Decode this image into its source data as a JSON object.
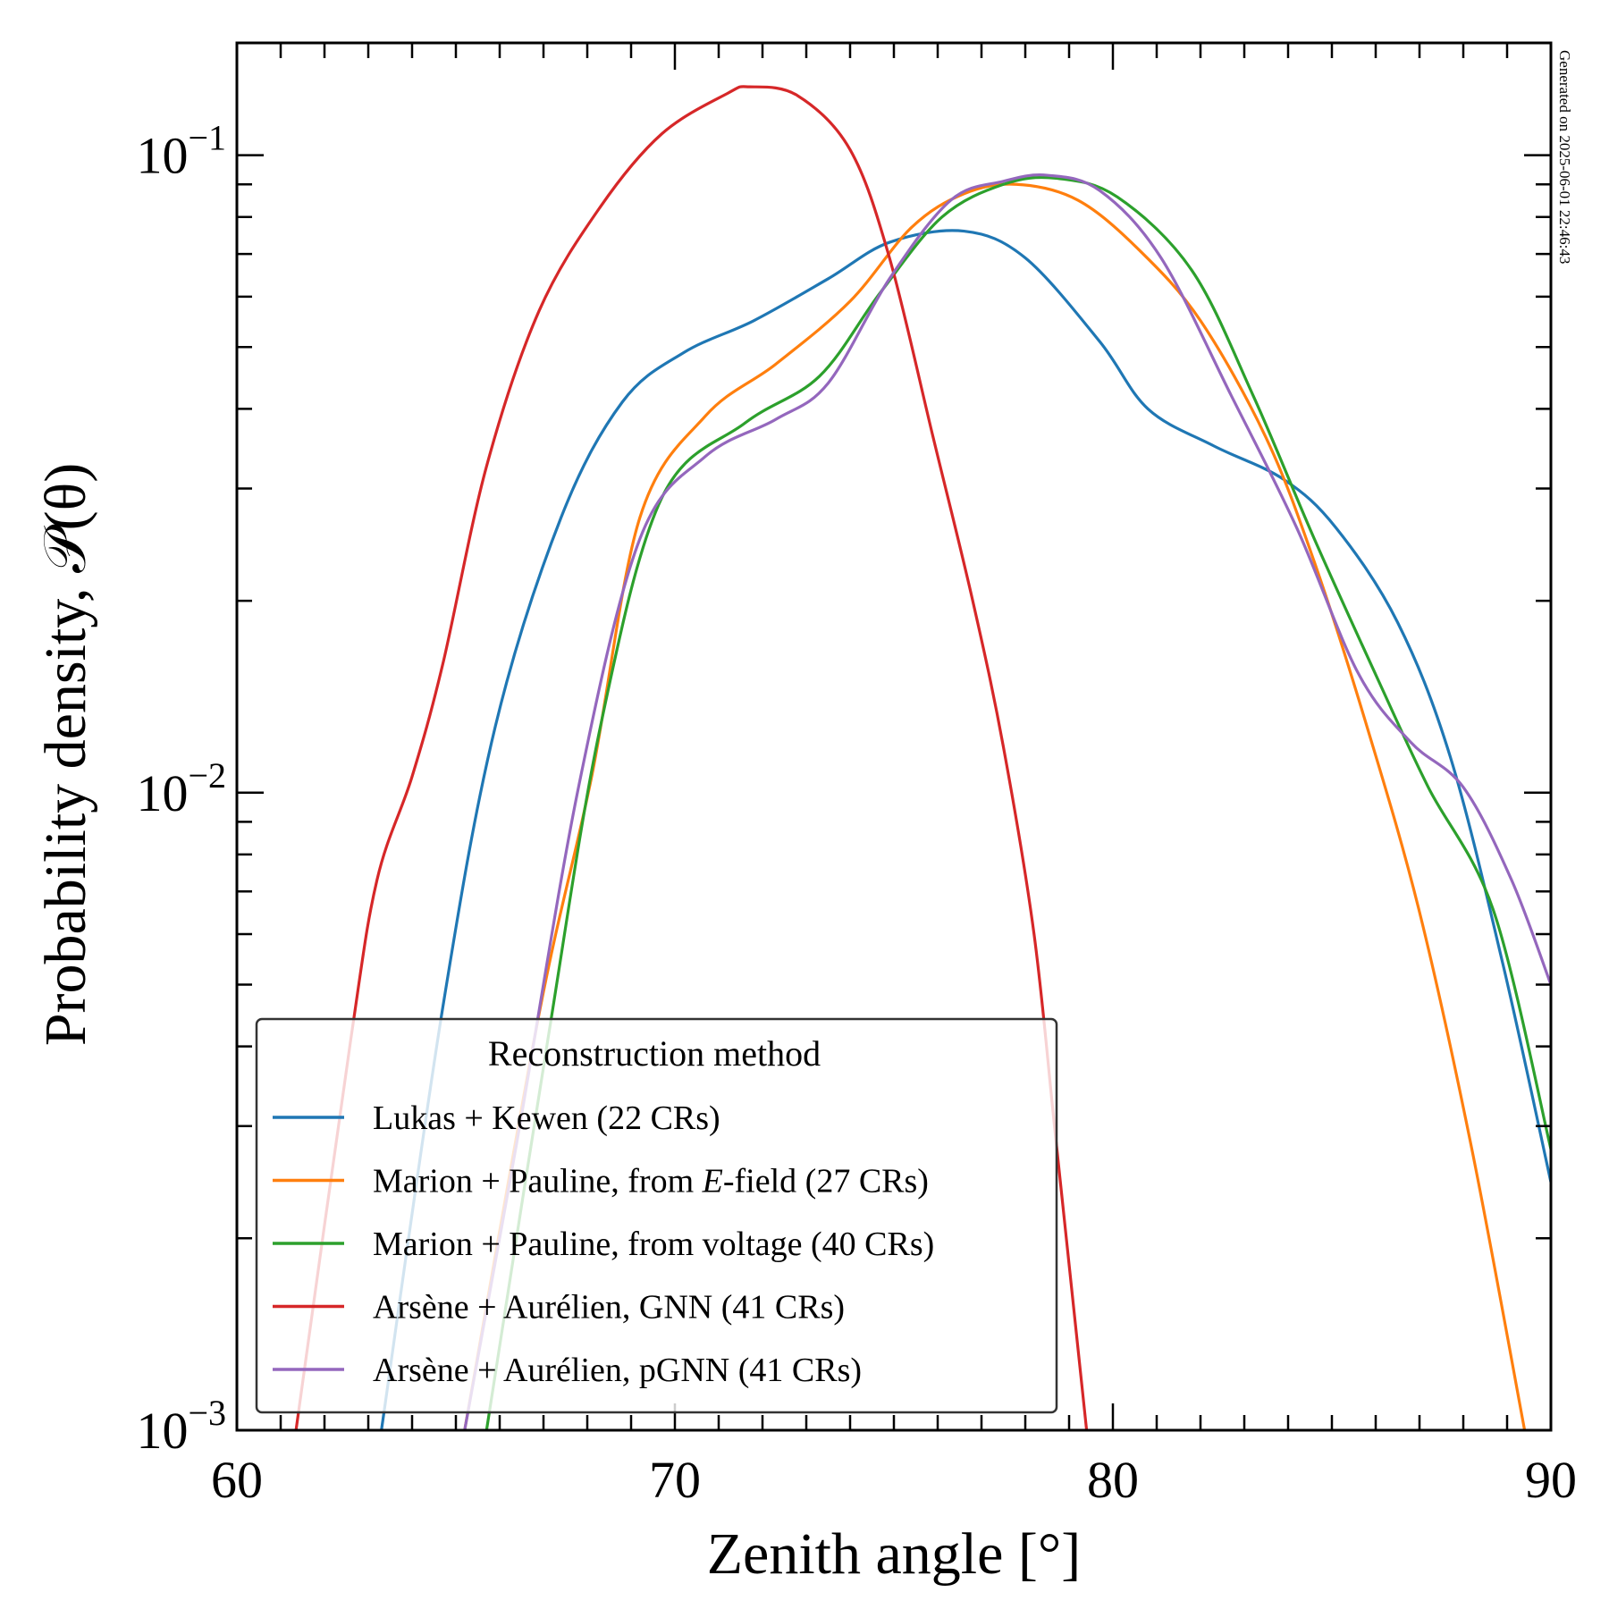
{
  "chart_data": {
    "type": "line",
    "title": "",
    "xlabel": "Zenith angle [°]",
    "ylabel": "Probability density, 𝒫(θ)",
    "xscale": "linear",
    "yscale": "log",
    "xlim": [
      60,
      90
    ],
    "ylim": [
      0.001,
      0.15
    ],
    "x_ticks": [
      60,
      70,
      80,
      90
    ],
    "x_tick_labels": [
      "60",
      "70",
      "80",
      "90"
    ],
    "y_ticks": [
      0.001,
      0.01,
      0.1
    ],
    "y_tick_labels": [
      {
        "base": "10",
        "exp": "−3"
      },
      {
        "base": "10",
        "exp": "−2"
      },
      {
        "base": "10",
        "exp": "−1"
      }
    ],
    "grid": false,
    "legend": {
      "title": "Reconstruction method",
      "placement": "lower-left"
    },
    "annotation": "Generated on 2025-06-01  22:46:43",
    "series": [
      {
        "name": "Lukas + Kewen (22 CRs)",
        "color": "#1f77b4",
        "x": [
          63.3,
          64.7,
          65.9,
          67.4,
          68.8,
          70.2,
          71.8,
          73.5,
          74.9,
          76.6,
          78.0,
          79.7,
          80.8,
          82.3,
          83.9,
          85.1,
          86.5,
          87.7,
          88.9,
          90.0
        ],
        "y": [
          0.001,
          0.0046,
          0.0127,
          0.027,
          0.041,
          0.049,
          0.055,
          0.064,
          0.073,
          0.076,
          0.069,
          0.051,
          0.04,
          0.035,
          0.031,
          0.026,
          0.0185,
          0.0114,
          0.0054,
          0.00245
        ]
      },
      {
        "name": "Marion + Pauline, from E-field (27 CRs)",
        "label_parts": [
          "Marion + Pauline, from ",
          "E",
          "-field (27 CRs)"
        ],
        "color": "#ff7f0e",
        "x": [
          65.2,
          66.9,
          68.1,
          69.2,
          70.7,
          72.3,
          74.0,
          75.4,
          76.6,
          77.8,
          79.2,
          80.6,
          82.0,
          83.5,
          84.6,
          85.8,
          87.0,
          88.2,
          89.4
        ],
        "y": [
          0.001,
          0.0045,
          0.0106,
          0.027,
          0.039,
          0.047,
          0.059,
          0.077,
          0.087,
          0.09,
          0.085,
          0.071,
          0.055,
          0.036,
          0.023,
          0.0127,
          0.0065,
          0.00275,
          0.001
        ]
      },
      {
        "name": "Marion + Pauline, from voltage (40 CRs)",
        "color": "#2ca02c",
        "x": [
          65.7,
          67.1,
          68.3,
          69.7,
          71.6,
          73.3,
          74.7,
          76.1,
          77.5,
          78.7,
          80.1,
          81.8,
          83.2,
          84.6,
          86.1,
          87.2,
          88.7,
          90.0
        ],
        "y": [
          0.001,
          0.0041,
          0.0127,
          0.029,
          0.038,
          0.045,
          0.061,
          0.08,
          0.09,
          0.092,
          0.086,
          0.066,
          0.042,
          0.025,
          0.0148,
          0.0102,
          0.0065,
          0.00276
        ]
      },
      {
        "name": "Arsène + Aurélien, GNN (41 CRs)",
        "color": "#d62728",
        "x": [
          61.35,
          62.6,
          63.2,
          64.0,
          64.7,
          65.7,
          66.9,
          68.3,
          69.7,
          71.2,
          71.7,
          72.8,
          74.0,
          74.9,
          75.9,
          76.8,
          77.5,
          78.2,
          78.7,
          79.4
        ],
        "y": [
          0.001,
          0.0041,
          0.0073,
          0.0106,
          0.0159,
          0.0325,
          0.057,
          0.083,
          0.108,
          0.125,
          0.128,
          0.124,
          0.102,
          0.069,
          0.036,
          0.02,
          0.0118,
          0.006,
          0.00285,
          0.001
        ]
      },
      {
        "name": "Arsène + Aurélien, pGNN (41 CRs)",
        "color": "#9467bd",
        "x": [
          65.2,
          66.4,
          67.8,
          69.2,
          70.7,
          72.3,
          73.5,
          74.9,
          76.3,
          77.5,
          78.5,
          79.7,
          81.1,
          82.7,
          84.2,
          85.6,
          86.8,
          88.0,
          89.1,
          90.0
        ],
        "y": [
          0.001,
          0.00285,
          0.0102,
          0.025,
          0.0337,
          0.0385,
          0.0439,
          0.064,
          0.085,
          0.091,
          0.093,
          0.088,
          0.069,
          0.042,
          0.026,
          0.0154,
          0.012,
          0.0102,
          0.0073,
          0.005
        ]
      }
    ]
  }
}
